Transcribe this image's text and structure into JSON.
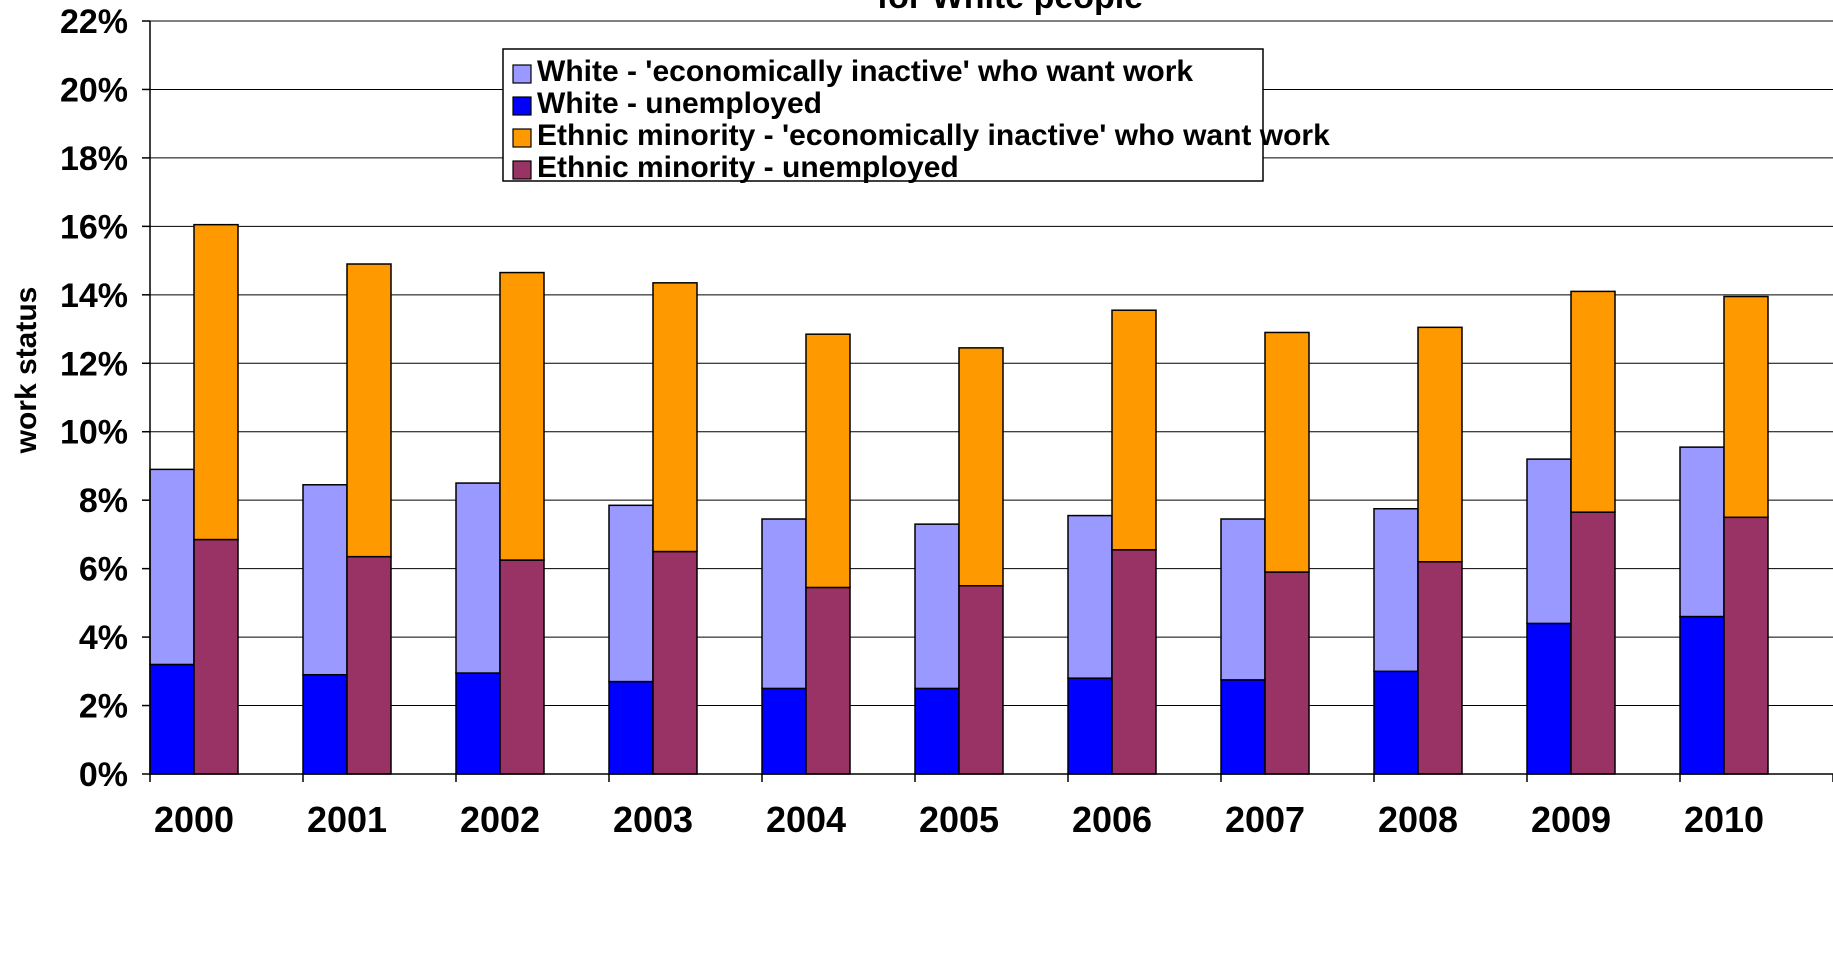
{
  "chart_data": {
    "type": "bar",
    "subtype": "stacked-grouped",
    "title": "for White people",
    "xlabel": "",
    "ylabel": "work status",
    "ylim": [
      0,
      22
    ],
    "y_ticks": [
      "0%",
      "2%",
      "4%",
      "6%",
      "8%",
      "10%",
      "12%",
      "14%",
      "16%",
      "18%",
      "20%",
      "22%"
    ],
    "grid": true,
    "legend_position": "top-center",
    "categories": [
      "2000",
      "2001",
      "2002",
      "2003",
      "2004",
      "2005",
      "2006",
      "2007",
      "2008",
      "2009",
      "2010"
    ],
    "groups": [
      {
        "name": "White",
        "series": [
          {
            "name": "White - unemployed",
            "color": "#0000ff",
            "values": [
              3.2,
              2.9,
              2.95,
              2.7,
              2.5,
              2.5,
              2.8,
              2.75,
              3.0,
              4.4,
              4.6
            ]
          },
          {
            "name": "White - 'economically inactive' who want work",
            "color": "#9999ff",
            "values": [
              5.7,
              5.55,
              5.55,
              5.15,
              4.95,
              4.8,
              4.75,
              4.7,
              4.75,
              4.8,
              4.95
            ]
          }
        ]
      },
      {
        "name": "Ethnic minority",
        "series": [
          {
            "name": "Ethnic minority - unemployed",
            "color": "#993366",
            "values": [
              6.85,
              6.35,
              6.25,
              6.5,
              5.45,
              5.5,
              6.55,
              5.9,
              6.2,
              7.65,
              7.5
            ]
          },
          {
            "name": "Ethnic minority - 'economically inactive' who want work",
            "color": "#ff9900",
            "values": [
              9.2,
              8.55,
              8.4,
              7.85,
              7.4,
              6.95,
              7.0,
              7.0,
              6.85,
              6.45,
              6.45
            ]
          }
        ]
      }
    ],
    "legend": [
      "White - 'economically inactive' who want work",
      "White - unemployed",
      "Ethnic minority - 'economically inactive' who want work",
      "Ethnic minority - unemployed"
    ],
    "legend_colors": [
      "#9999ff",
      "#0000ff",
      "#ff9900",
      "#993366"
    ]
  }
}
